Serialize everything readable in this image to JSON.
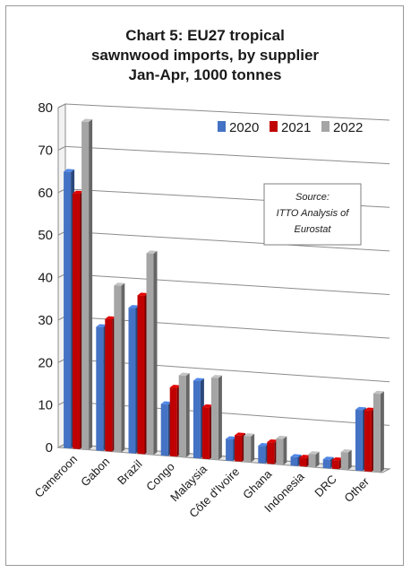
{
  "chart_data": {
    "type": "bar",
    "title": [
      "Chart 5: EU27 tropical",
      "sawnwood imports, by supplier",
      "Jan-Apr, 1000 tonnes"
    ],
    "categories": [
      "Cameroon",
      "Gabon",
      "Brazil",
      "Congo",
      "Malaysia",
      "Côte d'Ivoire",
      "Ghana",
      "Indonesia",
      "DRC",
      "Other"
    ],
    "series": [
      {
        "name": "2020",
        "color": "#4472c4",
        "values": [
          65,
          29,
          34,
          12,
          18,
          5,
          4,
          2,
          2,
          14
        ]
      },
      {
        "name": "2021",
        "color": "#c00000",
        "values": [
          60,
          31,
          37,
          16,
          12,
          6,
          5,
          2,
          2,
          14
        ]
      },
      {
        "name": "2022",
        "color": "#a5a5a5",
        "values": [
          77,
          39,
          47,
          19,
          19,
          6,
          6,
          3,
          4,
          18
        ]
      }
    ],
    "ylim": [
      0,
      80
    ],
    "yticks": [
      0,
      10,
      20,
      30,
      40,
      50,
      60,
      70,
      80
    ],
    "grid": true,
    "legend_position": "top-right",
    "annotation": [
      "Source:",
      "ITTO Analysis of",
      "Eurostat"
    ]
  }
}
